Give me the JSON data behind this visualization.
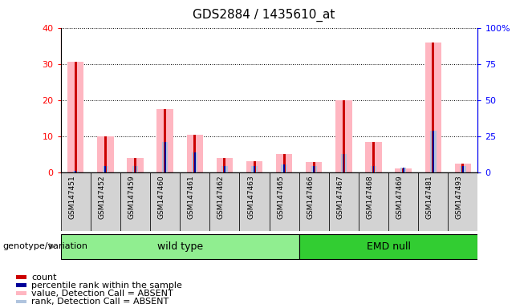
{
  "title": "GDS2884 / 1435610_at",
  "samples": [
    "GSM147451",
    "GSM147452",
    "GSM147459",
    "GSM147460",
    "GSM147461",
    "GSM147462",
    "GSM147463",
    "GSM147465",
    "GSM147466",
    "GSM147467",
    "GSM147468",
    "GSM147469",
    "GSM147481",
    "GSM147493"
  ],
  "absent_value_bars": [
    30.5,
    10.0,
    4.0,
    17.5,
    10.5,
    4.0,
    3.2,
    5.0,
    3.0,
    20.0,
    8.5,
    1.2,
    36.0,
    2.5
  ],
  "absent_rank_bars": [
    0.5,
    1.8,
    1.8,
    8.5,
    5.5,
    1.8,
    1.8,
    2.2,
    1.8,
    5.0,
    1.8,
    1.3,
    11.5,
    1.8
  ],
  "genotype_groups": [
    {
      "label": "wild type",
      "start": 0,
      "end": 8,
      "color": "#90EE90"
    },
    {
      "label": "EMD null",
      "start": 8,
      "end": 14,
      "color": "#32CD32"
    }
  ],
  "ylim_left": [
    0,
    40
  ],
  "ylim_right": [
    0,
    100
  ],
  "yticks_left": [
    0,
    10,
    20,
    30,
    40
  ],
  "yticks_right": [
    0,
    25,
    50,
    75,
    100
  ],
  "yticklabels_left": [
    "0",
    "10",
    "20",
    "30",
    "40"
  ],
  "yticklabels_right": [
    "0",
    "25",
    "50",
    "75",
    "100%"
  ],
  "absent_value_color": "#FFB6C1",
  "absent_rank_color": "#B0C4DE",
  "count_color": "#CC0000",
  "rank_color": "#000099",
  "bg_color": "#D3D3D3",
  "genotype_label": "genotype/variation",
  "legend_items": [
    {
      "label": "count",
      "color": "#CC0000"
    },
    {
      "label": "percentile rank within the sample",
      "color": "#000099"
    },
    {
      "label": "value, Detection Call = ABSENT",
      "color": "#FFB6C1"
    },
    {
      "label": "rank, Detection Call = ABSENT",
      "color": "#B0C4DE"
    }
  ]
}
